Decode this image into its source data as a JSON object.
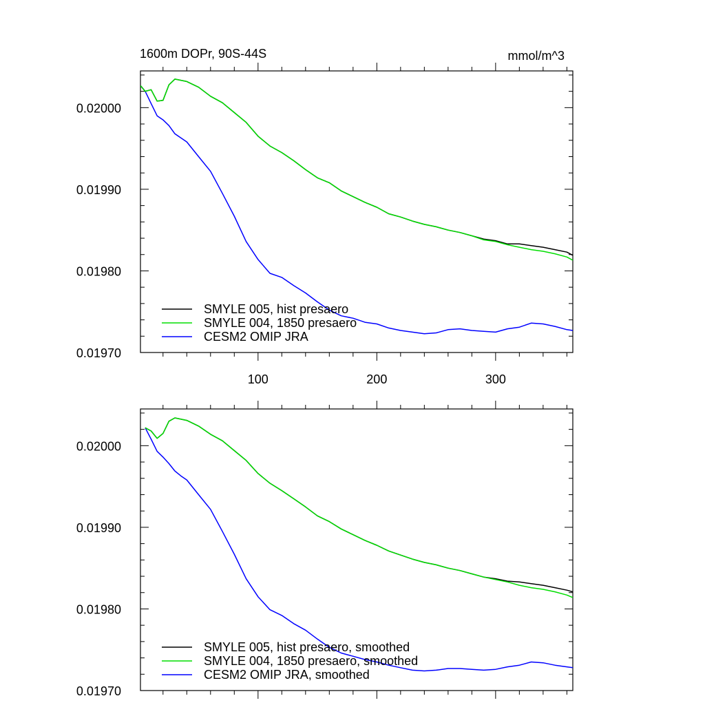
{
  "header": {
    "title": "1600m DOPr, 90S-44S",
    "units": "mmol/m^3"
  },
  "colors": {
    "smyle_005": "#000000",
    "smyle_004": "#00dd00",
    "omip": "#0000ff"
  },
  "chart_data": [
    {
      "type": "line",
      "xlim": [
        1,
        365
      ],
      "ylim": [
        0.0197,
        0.020045
      ],
      "xticks": [
        100,
        200,
        300
      ],
      "xtick_labels": [
        "100",
        "200",
        "300"
      ],
      "yticks": [
        0.0197,
        0.0198,
        0.0199,
        0.02
      ],
      "ytick_labels": [
        "0.01970",
        "0.01980",
        "0.01990",
        "0.02000"
      ],
      "legend_position": "bottom-left",
      "grid": false,
      "series": [
        {
          "name": "SMYLE 005, hist presaero",
          "color_key": "smyle_005",
          "x": [
            1,
            5,
            10,
            15,
            20,
            25,
            30,
            40,
            50,
            60,
            70,
            80,
            90,
            100,
            110,
            120,
            130,
            140,
            150,
            160,
            170,
            180,
            190,
            200,
            210,
            220,
            230,
            240,
            250,
            260,
            270,
            280,
            290,
            300,
            310,
            320,
            330,
            340,
            350,
            360,
            365
          ],
          "y": [
            0.020027,
            0.02002,
            0.020022,
            0.020008,
            0.020009,
            0.020028,
            0.020035,
            0.020032,
            0.020025,
            0.020014,
            0.020006,
            0.019994,
            0.019982,
            0.019965,
            0.019953,
            0.019945,
            0.019935,
            0.019924,
            0.019914,
            0.019908,
            0.019898,
            0.019891,
            0.019884,
            0.019878,
            0.01987,
            0.019866,
            0.019861,
            0.019857,
            0.019854,
            0.01985,
            0.019847,
            0.019843,
            0.019839,
            0.019837,
            0.019833,
            0.019833,
            0.019831,
            0.019829,
            0.019826,
            0.019823,
            0.019819
          ]
        },
        {
          "name": "SMYLE 004, 1850 presaero",
          "color_key": "smyle_004",
          "x": [
            1,
            5,
            10,
            15,
            20,
            25,
            30,
            40,
            50,
            60,
            70,
            80,
            90,
            100,
            110,
            120,
            130,
            140,
            150,
            160,
            170,
            180,
            190,
            200,
            210,
            220,
            230,
            240,
            250,
            260,
            270,
            280,
            290,
            300,
            310,
            320,
            330,
            340,
            350,
            360,
            365
          ],
          "y": [
            0.020027,
            0.02002,
            0.020022,
            0.020008,
            0.020009,
            0.020028,
            0.020035,
            0.020032,
            0.020025,
            0.020014,
            0.020006,
            0.019994,
            0.019982,
            0.019965,
            0.019953,
            0.019945,
            0.019935,
            0.019924,
            0.019914,
            0.019908,
            0.019898,
            0.019891,
            0.019884,
            0.019878,
            0.01987,
            0.019866,
            0.019861,
            0.019857,
            0.019854,
            0.01985,
            0.019847,
            0.019843,
            0.019838,
            0.019836,
            0.019832,
            0.019829,
            0.019826,
            0.019824,
            0.019821,
            0.019817,
            0.019813
          ]
        },
        {
          "name": "CESM2 OMIP JRA",
          "color_key": "omip",
          "x": [
            1,
            5,
            10,
            15,
            20,
            25,
            30,
            35,
            40,
            50,
            60,
            70,
            80,
            90,
            100,
            110,
            120,
            130,
            140,
            150,
            160,
            170,
            180,
            190,
            200,
            210,
            220,
            230,
            240,
            250,
            260,
            270,
            280,
            290,
            300,
            310,
            320,
            330,
            340,
            350,
            360,
            365
          ],
          "y": [
            0.020027,
            0.02002,
            0.020005,
            0.01999,
            0.019985,
            0.019978,
            0.019968,
            0.019963,
            0.019958,
            0.01994,
            0.019922,
            0.019895,
            0.019867,
            0.019836,
            0.019814,
            0.019797,
            0.019792,
            0.019782,
            0.019773,
            0.019762,
            0.019752,
            0.019745,
            0.019742,
            0.019737,
            0.019735,
            0.01973,
            0.019727,
            0.019725,
            0.019723,
            0.019724,
            0.019728,
            0.019729,
            0.019727,
            0.019726,
            0.019725,
            0.019729,
            0.019731,
            0.019736,
            0.019735,
            0.019732,
            0.019728,
            0.019727
          ]
        }
      ]
    },
    {
      "type": "line",
      "xlim": [
        1,
        365
      ],
      "ylim": [
        0.0197,
        0.020045
      ],
      "xticks": [
        100,
        200,
        300
      ],
      "yticks": [
        0.0197,
        0.0198,
        0.0199,
        0.02
      ],
      "ytick_labels": [
        "0.01970",
        "0.01980",
        "0.01990",
        "0.02000"
      ],
      "legend_position": "bottom-left",
      "grid": false,
      "series": [
        {
          "name": "SMYLE 005, hist presaero, smoothed",
          "color_key": "smyle_005",
          "x": [
            5,
            10,
            15,
            20,
            25,
            30,
            40,
            50,
            60,
            70,
            80,
            90,
            100,
            110,
            120,
            130,
            140,
            150,
            160,
            170,
            180,
            190,
            200,
            210,
            220,
            230,
            240,
            250,
            260,
            270,
            280,
            290,
            300,
            310,
            320,
            330,
            340,
            350,
            360,
            365
          ],
          "y": [
            0.020022,
            0.020018,
            0.020009,
            0.020015,
            0.02003,
            0.020034,
            0.020031,
            0.020024,
            0.020014,
            0.020006,
            0.019994,
            0.019982,
            0.019966,
            0.019954,
            0.019945,
            0.019935,
            0.019925,
            0.019914,
            0.019907,
            0.019898,
            0.019891,
            0.019884,
            0.019878,
            0.019871,
            0.019866,
            0.019861,
            0.019857,
            0.019854,
            0.01985,
            0.019847,
            0.019843,
            0.019839,
            0.019837,
            0.019834,
            0.019833,
            0.019831,
            0.019829,
            0.019826,
            0.019823,
            0.019821
          ]
        },
        {
          "name": "SMYLE 004, 1850 presaero, smoothed",
          "color_key": "smyle_004",
          "x": [
            5,
            10,
            15,
            20,
            25,
            30,
            40,
            50,
            60,
            70,
            80,
            90,
            100,
            110,
            120,
            130,
            140,
            150,
            160,
            170,
            180,
            190,
            200,
            210,
            220,
            230,
            240,
            250,
            260,
            270,
            280,
            290,
            300,
            310,
            320,
            330,
            340,
            350,
            360,
            365
          ],
          "y": [
            0.020022,
            0.020018,
            0.020009,
            0.020015,
            0.02003,
            0.020034,
            0.020031,
            0.020024,
            0.020014,
            0.020006,
            0.019994,
            0.019982,
            0.019966,
            0.019954,
            0.019945,
            0.019935,
            0.019925,
            0.019914,
            0.019907,
            0.019898,
            0.019891,
            0.019884,
            0.019878,
            0.019871,
            0.019866,
            0.019861,
            0.019857,
            0.019854,
            0.01985,
            0.019847,
            0.019843,
            0.019839,
            0.019836,
            0.019833,
            0.019829,
            0.019826,
            0.019824,
            0.019821,
            0.019817,
            0.019814
          ]
        },
        {
          "name": "CESM2 OMIP JRA, smoothed",
          "color_key": "omip",
          "x": [
            5,
            10,
            15,
            20,
            25,
            30,
            35,
            40,
            50,
            60,
            70,
            80,
            90,
            100,
            110,
            120,
            130,
            140,
            150,
            160,
            170,
            180,
            190,
            200,
            210,
            220,
            230,
            240,
            250,
            260,
            270,
            280,
            290,
            300,
            310,
            320,
            330,
            340,
            350,
            360,
            365
          ],
          "y": [
            0.020022,
            0.020008,
            0.019993,
            0.019986,
            0.019978,
            0.019969,
            0.019963,
            0.019958,
            0.01994,
            0.019922,
            0.019895,
            0.019867,
            0.019837,
            0.019815,
            0.019799,
            0.019792,
            0.019782,
            0.019774,
            0.019763,
            0.019753,
            0.019746,
            0.019742,
            0.019738,
            0.019735,
            0.019731,
            0.019728,
            0.019725,
            0.019724,
            0.019725,
            0.019727,
            0.019727,
            0.019726,
            0.019725,
            0.019726,
            0.019729,
            0.019731,
            0.019735,
            0.019734,
            0.019731,
            0.019729,
            0.019728
          ]
        }
      ]
    }
  ]
}
